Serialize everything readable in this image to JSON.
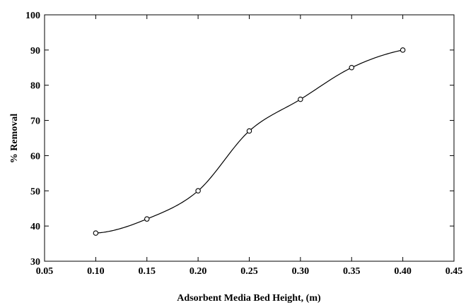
{
  "chart_data": {
    "type": "scatter",
    "title": "",
    "xlabel": "Adsorbent Media Bed Height, (m)",
    "ylabel": "% Removal",
    "xlim": [
      0.05,
      0.45
    ],
    "ylim": [
      30,
      100
    ],
    "x_ticks": [
      "0.05",
      "0.10",
      "0.15",
      "0.20",
      "0.25",
      "0.30",
      "0.35",
      "0.40",
      "0.45"
    ],
    "y_ticks": [
      "30",
      "40",
      "50",
      "60",
      "70",
      "80",
      "90",
      "100"
    ],
    "grid": false,
    "legend": "none",
    "series": [
      {
        "marker": "open-circle",
        "trendline": "smooth-fit",
        "x": [
          0.1,
          0.15,
          0.2,
          0.25,
          0.3,
          0.35,
          0.4
        ],
        "y": [
          38,
          42,
          50,
          67,
          76,
          85,
          90
        ]
      }
    ],
    "colors": {
      "marker": "#000000",
      "line": "#000000",
      "axis": "#000000"
    }
  }
}
